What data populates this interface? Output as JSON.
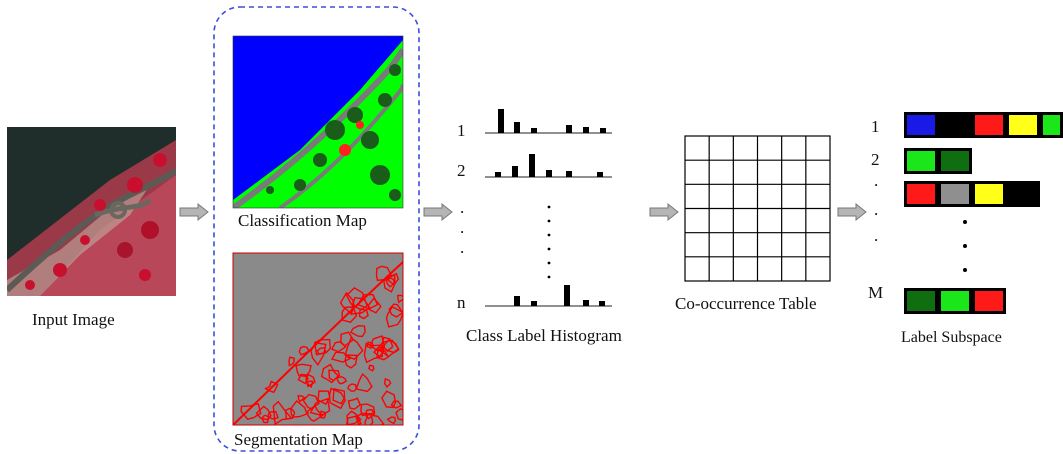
{
  "input": {
    "label": "Input Image"
  },
  "maps": {
    "classification_label": "Classification Map",
    "segmentation_label": "Segmentation Map"
  },
  "histogram": {
    "label": "Class Label Histogram",
    "row_labels": [
      "1",
      "2",
      "n"
    ],
    "dots_left": [
      ".",
      ".",
      "."
    ]
  },
  "cooccurrence": {
    "label": "Co-occurrence Table"
  },
  "subspace": {
    "label": "Label Subspace",
    "row_labels": [
      "1",
      "2",
      "M"
    ],
    "dots_left": [
      ".",
      ".",
      "."
    ],
    "rows": [
      [
        "#1a1ae6",
        "#000000",
        "#ff1a1a",
        "#ffff1a",
        "#1ae61a"
      ],
      [
        "#1ae61a",
        "#0f6e0f"
      ],
      [
        "#ff1a1a",
        "#8f8f8f",
        "#ffff1a",
        "#000000"
      ],
      [
        "#0f6e0f",
        "#1ae61a",
        "#ff1a1a"
      ]
    ]
  },
  "colors": {
    "dashed_border": "#3b4fd8",
    "arrow": "#9a9a9a",
    "segmentation_bg": "#8a8a8a",
    "segmentation_edges": "#ff0000",
    "classification_water": "#0000ff",
    "classification_vegetation": "#00ff00"
  }
}
